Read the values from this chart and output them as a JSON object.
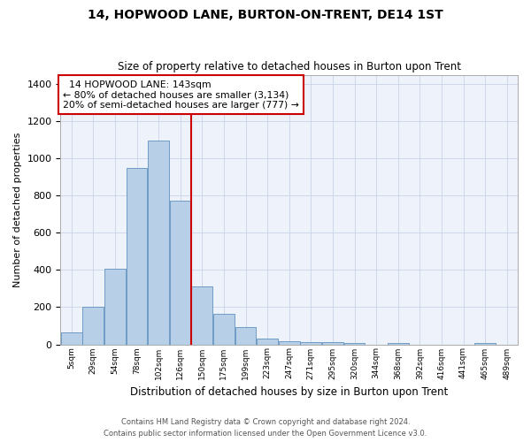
{
  "title": "14, HOPWOOD LANE, BURTON-ON-TRENT, DE14 1ST",
  "subtitle": "Size of property relative to detached houses in Burton upon Trent",
  "xlabel": "Distribution of detached houses by size in Burton upon Trent",
  "ylabel": "Number of detached properties",
  "footer_line1": "Contains HM Land Registry data © Crown copyright and database right 2024.",
  "footer_line2": "Contains public sector information licensed under the Open Government Licence v3.0.",
  "annotation_line1": "  14 HOPWOOD LANE: 143sqm",
  "annotation_line2": "← 80% of detached houses are smaller (3,134)",
  "annotation_line3": "20% of semi-detached houses are larger (777) →",
  "bar_color": "#b8cfe8",
  "bar_edge_color": "#6090c0",
  "vline_color": "#cc0000",
  "annotation_box_edgecolor": "#cc0000",
  "background_color": "#eef2fa",
  "categories": [
    "5sqm",
    "29sqm",
    "54sqm",
    "78sqm",
    "102sqm",
    "126sqm",
    "150sqm",
    "175sqm",
    "199sqm",
    "223sqm",
    "247sqm",
    "271sqm",
    "295sqm",
    "320sqm",
    "344sqm",
    "368sqm",
    "392sqm",
    "416sqm",
    "441sqm",
    "465sqm",
    "489sqm"
  ],
  "values": [
    65,
    200,
    405,
    950,
    1095,
    775,
    310,
    165,
    95,
    30,
    15,
    10,
    10,
    5,
    0,
    5,
    0,
    0,
    0,
    5,
    0
  ],
  "ylim": [
    0,
    1450
  ],
  "yticks": [
    0,
    200,
    400,
    600,
    800,
    1000,
    1200,
    1400
  ],
  "grid_color": "#c8d4e8",
  "vline_x_bin": 5,
  "num_bins": 21
}
